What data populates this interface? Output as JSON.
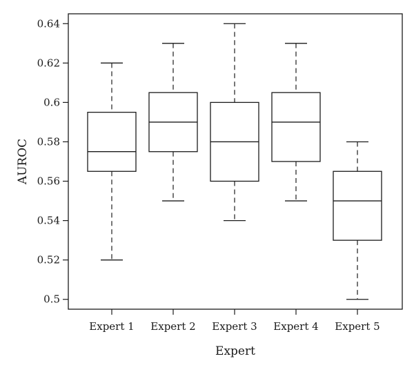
{
  "chart_data": {
    "type": "box",
    "title": "",
    "xlabel": "Expert",
    "ylabel": "AUROC",
    "ylim": [
      0.495,
      0.645
    ],
    "yticks": [
      0.5,
      0.52,
      0.54,
      0.56,
      0.58,
      0.6,
      0.62,
      0.64
    ],
    "ytick_labels": [
      "0.5",
      "0.52",
      "0.54",
      "0.56",
      "0.58",
      "0.6",
      "0.62",
      "0.64"
    ],
    "grid": false,
    "categories": [
      "Expert 1",
      "Expert 2",
      "Expert 3",
      "Expert 4",
      "Expert 5"
    ],
    "boxes": [
      {
        "category": "Expert 1",
        "min": 0.52,
        "q1": 0.565,
        "median": 0.575,
        "q3": 0.595,
        "max": 0.62
      },
      {
        "category": "Expert 2",
        "min": 0.55,
        "q1": 0.575,
        "median": 0.59,
        "q3": 0.605,
        "max": 0.63
      },
      {
        "category": "Expert 3",
        "min": 0.54,
        "q1": 0.56,
        "median": 0.58,
        "q3": 0.6,
        "max": 0.64
      },
      {
        "category": "Expert 4",
        "min": 0.55,
        "q1": 0.57,
        "median": 0.59,
        "q3": 0.605,
        "max": 0.63
      },
      {
        "category": "Expert 5",
        "min": 0.5,
        "q1": 0.53,
        "median": 0.55,
        "q3": 0.565,
        "max": 0.58
      }
    ]
  }
}
